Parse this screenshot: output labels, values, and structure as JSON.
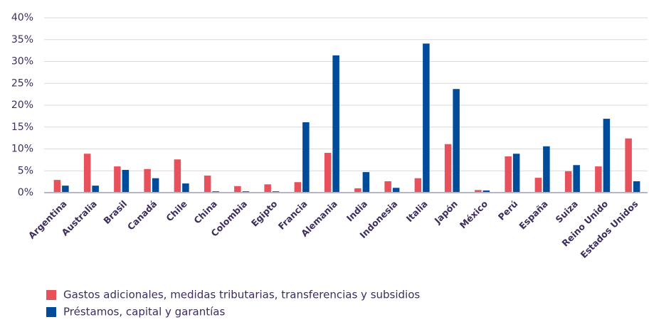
{
  "chart_data": {
    "type": "bar",
    "categories": [
      "Argentina",
      "Australia",
      "Brasil",
      "Canadá",
      "Chile",
      "China",
      "Colombia",
      "Egipto",
      "Francia",
      "Alemania",
      "India",
      "Indonesia",
      "Italia",
      "Japón",
      "México",
      "Perú",
      "España",
      "Suiza",
      "Reino Unido",
      "Estados Unidos"
    ],
    "series": [
      {
        "name": "Gastos adicionales, medidas tributarias, transferencias y subsidios",
        "color": "#e8505b",
        "values": [
          2.9,
          8.9,
          6.0,
          5.4,
          7.6,
          3.9,
          1.5,
          1.9,
          2.4,
          9.1,
          1.0,
          2.6,
          3.3,
          11.1,
          0.6,
          8.3,
          3.4,
          4.9,
          6.0,
          12.4
        ]
      },
      {
        "name": "Préstamos, capital y garantías",
        "color": "#004b9a",
        "values": [
          1.6,
          1.6,
          5.2,
          3.3,
          2.1,
          0.3,
          0.3,
          0.3,
          16.1,
          31.4,
          4.7,
          1.1,
          34.1,
          23.7,
          0.5,
          8.9,
          10.6,
          6.3,
          16.9,
          2.6
        ]
      }
    ],
    "ylim": [
      0,
      40
    ],
    "yticks": [
      {
        "value": 0,
        "label": "0%"
      },
      {
        "value": 5,
        "label": "5%"
      },
      {
        "value": 10,
        "label": "10%"
      },
      {
        "value": 15,
        "label": "15%"
      },
      {
        "value": 20,
        "label": "20%"
      },
      {
        "value": 25,
        "label": "25%"
      },
      {
        "value": 30,
        "label": "30%"
      },
      {
        "value": 35,
        "label": "35%"
      },
      {
        "value": 40,
        "label": "40%"
      }
    ],
    "grid": true
  }
}
